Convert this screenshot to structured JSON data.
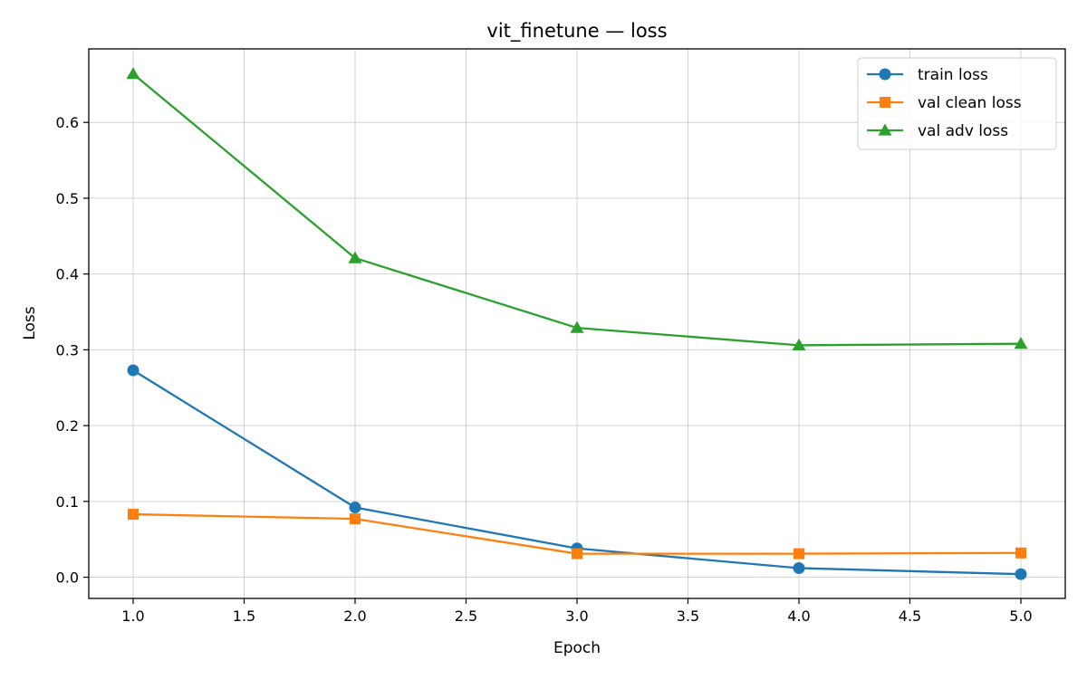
{
  "chart_data": {
    "type": "line",
    "title": "vit_finetune — loss",
    "xlabel": "Epoch",
    "ylabel": "Loss",
    "xlim": [
      0.8,
      5.2
    ],
    "ylim": [
      -0.028,
      0.697
    ],
    "xticks": [
      1.0,
      1.5,
      2.0,
      2.5,
      3.0,
      3.5,
      4.0,
      4.5,
      5.0
    ],
    "xtick_labels": [
      "1.0",
      "1.5",
      "2.0",
      "2.5",
      "3.0",
      "3.5",
      "4.0",
      "4.5",
      "5.0"
    ],
    "yticks": [
      0.0,
      0.1,
      0.2,
      0.3,
      0.4,
      0.5,
      0.6
    ],
    "ytick_labels": [
      "0.0",
      "0.1",
      "0.2",
      "0.3",
      "0.4",
      "0.5",
      "0.6"
    ],
    "grid": true,
    "legend": "top-right",
    "x": [
      1,
      2,
      3,
      4,
      5
    ],
    "series": [
      {
        "name": "train loss",
        "color": "#1f77b4",
        "marker": "circle",
        "values": [
          0.273,
          0.092,
          0.038,
          0.012,
          0.004
        ]
      },
      {
        "name": "val clean loss",
        "color": "#ff7f0e",
        "marker": "square",
        "values": [
          0.083,
          0.077,
          0.031,
          0.031,
          0.032
        ]
      },
      {
        "name": "val adv loss",
        "color": "#2ca02c",
        "marker": "triangle",
        "values": [
          0.664,
          0.421,
          0.329,
          0.306,
          0.308
        ]
      }
    ]
  }
}
